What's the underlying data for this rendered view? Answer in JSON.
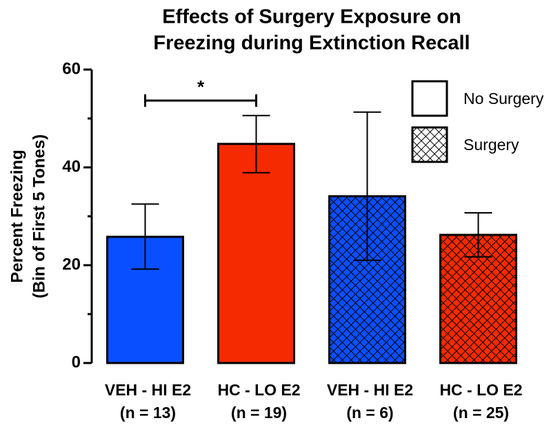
{
  "chart_data": {
    "type": "bar",
    "title": [
      "Effects of Surgery Exposure on",
      "Freezing during Extinction Recall"
    ],
    "ylabel": [
      "Percent Freezing",
      "(Bin of First 5 Tones)"
    ],
    "categories": [
      "VEH - HI E2",
      "HC - LO E2",
      "VEH - HI E2",
      "HC - LO E2"
    ],
    "group_sizes": [
      "(n = 13)",
      "(n = 19)",
      "(n = 6)",
      "(n = 25)"
    ],
    "values": [
      25.8,
      44.8,
      34.1,
      26.2
    ],
    "errors_low": [
      6.6,
      5.9,
      13.1,
      4.5
    ],
    "errors_high": [
      6.7,
      5.8,
      17.2,
      4.5
    ],
    "colors": [
      "#0a4fff",
      "#f52a00",
      "#0a4fff",
      "#f52a00"
    ],
    "hatched": [
      false,
      false,
      true,
      true
    ],
    "legend": [
      {
        "name": "No Surgery",
        "hatched": false
      },
      {
        "name": "Surgery",
        "hatched": true
      }
    ],
    "annotation": "*",
    "ylim": [
      0,
      60
    ],
    "yticks": [
      0,
      20,
      40,
      60
    ],
    "yminor": [
      10,
      30,
      50
    ]
  }
}
